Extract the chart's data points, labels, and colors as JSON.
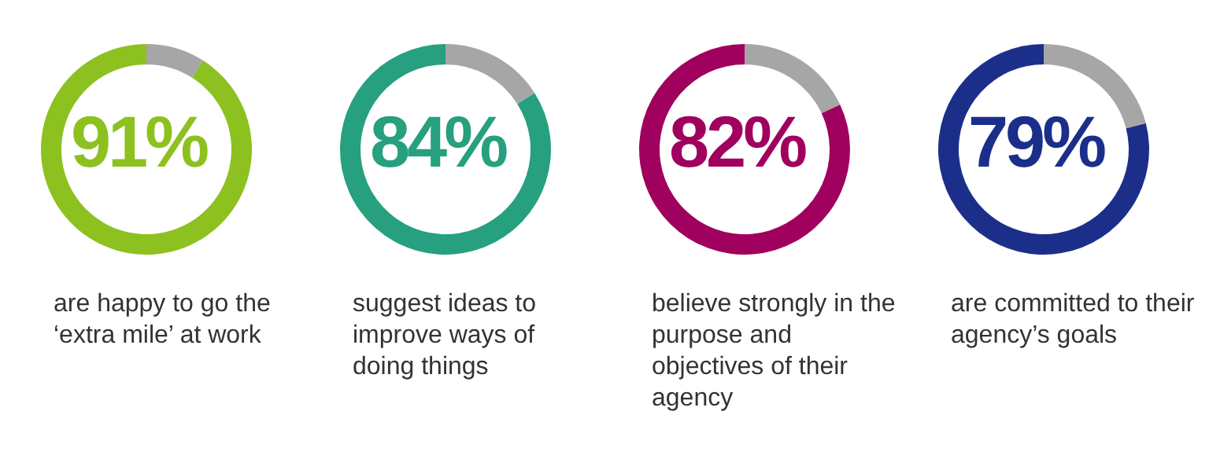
{
  "chart_data": [
    {
      "type": "donut",
      "categories": [
        null,
        null
      ],
      "values": [
        91,
        9
      ],
      "colors": [
        "#8cc11f",
        "#a6a6a6"
      ],
      "value_labels": [
        "91%",
        null
      ],
      "annotations": [
        "are happy to go the ‘extra mile’ at work"
      ]
    },
    {
      "type": "donut",
      "categories": [
        null,
        null
      ],
      "values": [
        84,
        16
      ],
      "colors": [
        "#26a07e",
        "#a6a6a6"
      ],
      "value_labels": [
        "84%",
        null
      ],
      "annotations": [
        "suggest ideas to improve ways of doing things"
      ]
    },
    {
      "type": "donut",
      "categories": [
        null,
        null
      ],
      "values": [
        82,
        18
      ],
      "colors": [
        "#a0005e",
        "#a6a6a6"
      ],
      "value_labels": [
        "82%",
        null
      ],
      "annotations": [
        "believe strongly in the purpose and objectives of their agency"
      ]
    },
    {
      "type": "donut",
      "categories": [
        null,
        null
      ],
      "values": [
        79,
        21
      ],
      "colors": [
        "#1b2f8a",
        "#a6a6a6"
      ],
      "value_labels": [
        "79%",
        null
      ],
      "annotations": [
        "are committed to their agency’s goals"
      ]
    }
  ]
}
